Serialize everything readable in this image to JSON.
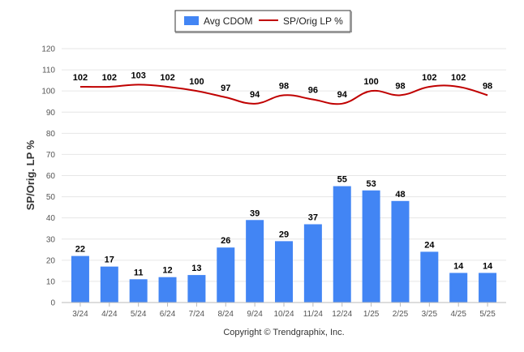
{
  "chart_data": {
    "type": "bar",
    "categories": [
      "3/24",
      "4/24",
      "5/24",
      "6/24",
      "7/24",
      "8/24",
      "9/24",
      "10/24",
      "11/24",
      "12/24",
      "1/25",
      "2/25",
      "3/25",
      "4/25",
      "5/25"
    ],
    "series": [
      {
        "name": "Avg CDOM",
        "type": "bar",
        "color": "#4285f4",
        "values": [
          22,
          17,
          11,
          12,
          13,
          26,
          39,
          29,
          37,
          55,
          53,
          48,
          24,
          14,
          14
        ]
      },
      {
        "name": "SP/Orig LP %",
        "type": "line",
        "color": "#c00000",
        "values": [
          102,
          102,
          103,
          102,
          100,
          97,
          94,
          98,
          96,
          94,
          100,
          98,
          102,
          102,
          98
        ]
      }
    ],
    "ylabel": "SP/Orig. LP %",
    "ylim": [
      0,
      120
    ],
    "yticks": [
      0,
      10,
      20,
      30,
      40,
      50,
      60,
      70,
      80,
      90,
      100,
      110,
      120
    ],
    "grid": true,
    "legend_position": "top"
  },
  "footer": "Copyright © Trendgraphix, Inc."
}
